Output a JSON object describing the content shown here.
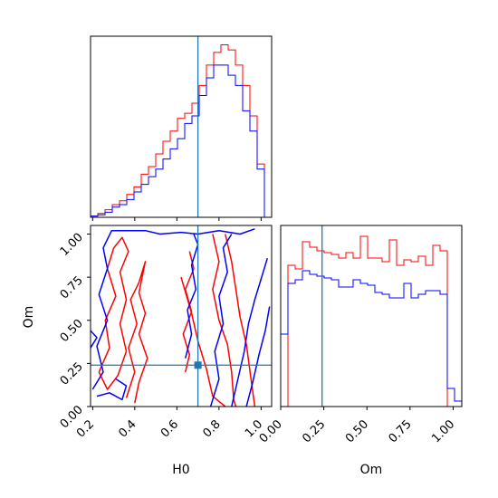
{
  "chart_data": {
    "type": "corner",
    "parameters": [
      "H0",
      "Om"
    ],
    "truth": {
      "H0": 0.7,
      "Om": 0.24
    },
    "colors": {
      "series_1": "#ff0000",
      "series_2": "#0000ff",
      "truth": "#1f77b4"
    },
    "panels": [
      {
        "name": "h0-marginal",
        "type": "histogram",
        "xlim": [
          0.19,
          1.05
        ],
        "bin_edges": [
          0.19,
          0.2244,
          0.2588,
          0.2932,
          0.3276,
          0.362,
          0.3964,
          0.4308,
          0.4652,
          0.4996,
          0.534,
          0.5684,
          0.6028,
          0.6372,
          0.6716,
          0.706,
          0.7404,
          0.7748,
          0.8092,
          0.8436,
          0.878,
          0.9124,
          0.9468,
          0.9812,
          1.0156,
          1.05
        ],
        "series": [
          {
            "name": "",
            "color": "#ff0000",
            "values": [
              0.5,
              1.5,
              3,
              5,
              6.5,
              9,
              12,
              17,
              20,
              25,
              30,
              34,
              39,
              41,
              45,
              52,
              60,
              65,
              68,
              66,
              60,
              52,
              40,
              21,
              0
            ]
          },
          {
            "name": "",
            "color": "#0000ff",
            "values": [
              0.5,
              1,
              2,
              4,
              5,
              7,
              10,
              13,
              16,
              19,
              23,
              27,
              31,
              37,
              40,
              48,
              55,
              60,
              60,
              56,
              52,
              42,
              34,
              19,
              0
            ]
          }
        ],
        "xtick_values": [
          0.2,
          0.4,
          0.6,
          0.8,
          1.0
        ]
      },
      {
        "name": "om-marginal",
        "type": "histogram",
        "xlim": [
          0.0,
          1.05
        ],
        "bin_edges": [
          0.0,
          0.042,
          0.084,
          0.126,
          0.168,
          0.21,
          0.252,
          0.294,
          0.336,
          0.378,
          0.42,
          0.462,
          0.504,
          0.546,
          0.588,
          0.63,
          0.672,
          0.714,
          0.756,
          0.798,
          0.84,
          0.882,
          0.924,
          0.966,
          1.008,
          1.05
        ],
        "series": [
          {
            "name": "",
            "color": "#ff0000",
            "values": [
              0,
              78,
              76,
              91,
              88,
              86,
              85,
              84,
              82,
              85,
              82,
              94,
              82,
              82,
              80,
              92,
              78,
              81,
              80,
              83,
              78,
              89,
              86,
              0,
              0
            ]
          },
          {
            "name": "",
            "color": "#0000ff",
            "values": [
              40,
              68,
              70,
              75,
              73,
              72,
              71,
              70,
              66,
              66,
              70,
              68,
              67,
              63,
              62,
              60,
              60,
              68,
              60,
              62,
              64,
              64,
              62,
              10,
              3
            ]
          }
        ],
        "xtick_values": [
          0.0,
          0.25,
          0.5,
          0.75,
          1.0
        ],
        "xtick_labels": [
          "0.00",
          "0.25",
          "0.50",
          "0.75",
          "1.00"
        ],
        "xlabel": "Om"
      },
      {
        "name": "h0-om-joint",
        "type": "contour",
        "xlim": [
          0.19,
          1.05
        ],
        "ylim": [
          0.0,
          1.05
        ],
        "contours": [
          {
            "color": "#ff0000",
            "points": [
              [
                0.23,
                0.2
              ],
              [
                0.28,
                0.34
              ],
              [
                0.26,
                0.5
              ],
              [
                0.31,
                0.64
              ],
              [
                0.27,
                0.8
              ],
              [
                0.3,
                0.92
              ],
              [
                0.34,
                0.98
              ],
              [
                0.37,
                0.9
              ],
              [
                0.33,
                0.78
              ],
              [
                0.36,
                0.62
              ],
              [
                0.33,
                0.48
              ],
              [
                0.36,
                0.32
              ],
              [
                0.32,
                0.18
              ],
              [
                0.27,
                0.1
              ],
              [
                0.23,
                0.2
              ]
            ]
          },
          {
            "color": "#ff0000",
            "points": [
              [
                0.36,
                0.05
              ],
              [
                0.4,
                0.2
              ],
              [
                0.37,
                0.34
              ],
              [
                0.41,
                0.48
              ],
              [
                0.38,
                0.62
              ],
              [
                0.42,
                0.72
              ],
              [
                0.45,
                0.84
              ],
              [
                0.42,
                0.66
              ],
              [
                0.45,
                0.54
              ],
              [
                0.42,
                0.42
              ],
              [
                0.46,
                0.28
              ],
              [
                0.42,
                0.14
              ],
              [
                0.4,
                0.02
              ]
            ]
          },
          {
            "color": "#ff0000",
            "points": [
              [
                0.62,
                0.75
              ],
              [
                0.67,
                0.54
              ],
              [
                0.7,
                0.38
              ],
              [
                0.74,
                0.22
              ],
              [
                0.77,
                0.06
              ],
              [
                0.83,
                0.0
              ]
            ]
          },
          {
            "color": "#ff0000",
            "points": [
              [
                0.77,
                1.0
              ],
              [
                0.8,
                0.84
              ],
              [
                0.77,
                0.68
              ],
              [
                0.8,
                0.5
              ],
              [
                0.84,
                0.36
              ],
              [
                0.86,
                0.2
              ],
              [
                0.87,
                0.04
              ],
              [
                0.88,
                0.0
              ]
            ]
          },
          {
            "color": "#ff0000",
            "points": [
              [
                0.83,
                1.0
              ],
              [
                0.86,
                0.84
              ],
              [
                0.88,
                0.68
              ],
              [
                0.9,
                0.52
              ],
              [
                0.93,
                0.36
              ],
              [
                0.95,
                0.18
              ],
              [
                0.97,
                0.0
              ]
            ]
          },
          {
            "color": "#ff0000",
            "points": [
              [
                0.64,
                0.2
              ],
              [
                0.66,
                0.3
              ],
              [
                0.63,
                0.42
              ],
              [
                0.67,
                0.55
              ],
              [
                0.64,
                0.68
              ],
              [
                0.68,
                0.8
              ],
              [
                0.66,
                0.9
              ]
            ]
          },
          {
            "color": "#0000ff",
            "points": [
              [
                0.2,
                0.1
              ],
              [
                0.25,
                0.2
              ],
              [
                0.22,
                0.35
              ],
              [
                0.27,
                0.5
              ],
              [
                0.23,
                0.65
              ],
              [
                0.27,
                0.8
              ],
              [
                0.25,
                0.92
              ],
              [
                0.29,
                1.02
              ],
              [
                0.45,
                1.02
              ],
              [
                0.52,
                1.0
              ],
              [
                0.62,
                1.01
              ],
              [
                0.7,
                1.0
              ],
              [
                0.8,
                1.02
              ],
              [
                0.9,
                1.0
              ],
              [
                0.97,
                1.03
              ]
            ]
          },
          {
            "color": "#0000ff",
            "points": [
              [
                0.22,
                0.06
              ],
              [
                0.28,
                0.08
              ],
              [
                0.34,
                0.04
              ],
              [
                0.36,
                0.12
              ],
              [
                0.31,
                0.16
              ]
            ]
          },
          {
            "color": "#0000ff",
            "points": [
              [
                0.19,
                0.34
              ],
              [
                0.22,
                0.4
              ],
              [
                0.19,
                0.44
              ]
            ]
          },
          {
            "color": "#0000ff",
            "points": [
              [
                0.64,
                0.28
              ],
              [
                0.67,
                0.42
              ],
              [
                0.65,
                0.56
              ],
              [
                0.69,
                0.68
              ],
              [
                0.67,
                0.82
              ],
              [
                0.7,
                0.94
              ],
              [
                0.68,
                1.0
              ]
            ]
          },
          {
            "color": "#0000ff",
            "points": [
              [
                0.76,
                0.0
              ],
              [
                0.8,
                0.16
              ],
              [
                0.78,
                0.32
              ],
              [
                0.82,
                0.48
              ],
              [
                0.8,
                0.64
              ],
              [
                0.84,
                0.78
              ],
              [
                0.82,
                0.92
              ],
              [
                0.86,
                1.0
              ]
            ]
          },
          {
            "color": "#0000ff",
            "points": [
              [
                0.86,
                0.0
              ],
              [
                0.89,
                0.16
              ],
              [
                0.92,
                0.32
              ],
              [
                0.94,
                0.48
              ],
              [
                0.97,
                0.62
              ],
              [
                1.0,
                0.74
              ],
              [
                1.03,
                0.86
              ]
            ]
          },
          {
            "color": "#0000ff",
            "points": [
              [
                0.93,
                0.0
              ],
              [
                0.96,
                0.14
              ],
              [
                0.99,
                0.3
              ],
              [
                1.02,
                0.44
              ],
              [
                1.04,
                0.58
              ]
            ]
          }
        ],
        "xtick_values": [
          0.2,
          0.4,
          0.6,
          0.8,
          1.0
        ],
        "xtick_labels": [
          "0.2",
          "0.4",
          "0.6",
          "0.8",
          "1.0"
        ],
        "ytick_values": [
          0.0,
          0.25,
          0.5,
          0.75,
          1.0
        ],
        "ytick_labels": [
          "0.00",
          "0.25",
          "0.50",
          "0.75",
          "1.00"
        ],
        "xlabel": "H0",
        "ylabel": "Om"
      }
    ]
  }
}
